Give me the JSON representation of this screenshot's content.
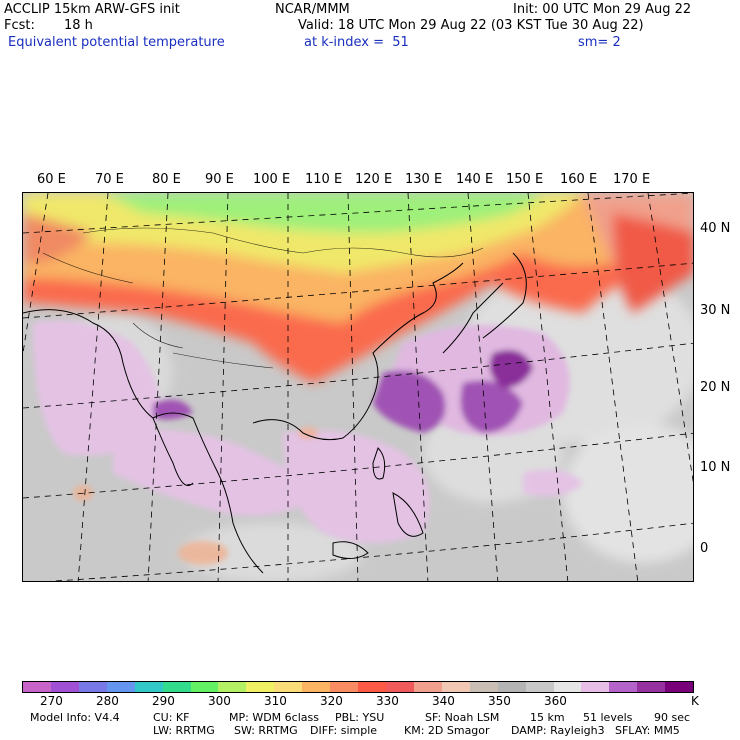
{
  "header": {
    "model_title": "ACCLIP 15km ARW-GFS init",
    "org": "NCAR/MMM",
    "init_time": "Init: 00 UTC Mon 29 Aug 22",
    "forecast_label": "Fcst:",
    "forecast_hours": "18 h",
    "valid_time": "Valid: 18 UTC Mon 29 Aug 22 (03 KST Tue 30 Aug 22)",
    "field_name": "Equivalent potential temperature",
    "level": "at k-index =  51",
    "smoothing": "sm= 2"
  },
  "map": {
    "longitude_labels": [
      "60 E",
      "70 E",
      "80 E",
      "90 E",
      "100 E",
      "110 E",
      "120 E",
      "130 E",
      "140 E",
      "150 E",
      "160 E",
      "170 E"
    ],
    "latitude_labels": [
      "40 N",
      "30 N",
      "20 N",
      "10 N",
      "0"
    ]
  },
  "colorbar": {
    "unit": "K",
    "tick_labels": [
      "270",
      "280",
      "290",
      "300",
      "310",
      "320",
      "330",
      "340",
      "350",
      "360"
    ],
    "colors": [
      "#c864c8",
      "#a050d2",
      "#7878e6",
      "#6496f0",
      "#32c8c8",
      "#32dc8c",
      "#64f064",
      "#b4f064",
      "#f0f064",
      "#fadc78",
      "#fab464",
      "#fa8c64",
      "#fa5a46",
      "#f05a5a",
      "#f0a08c",
      "#f0c8b4",
      "#c8beb4",
      "#b4b4b4",
      "#c8c8c8",
      "#e6e6e6",
      "#e6bee6",
      "#b464c8",
      "#9632a0",
      "#780078"
    ]
  },
  "footer": {
    "model_info": "Model Info: V4.4",
    "cu": "CU: KF",
    "mp": "MP: WDM 6class",
    "pbl": "PBL: YSU",
    "sf": "SF: Noah LSM",
    "resolution": "15 km",
    "levels": "51 levels",
    "timestep": "90 sec",
    "lw": "LW: RRTMG",
    "sw": "SW: RRTMG",
    "diff": "DIFF: simple",
    "km": "KM: 2D Smagor",
    "damp": "DAMP: Rayleigh3",
    "sflay": "SFLAY: MM5"
  }
}
